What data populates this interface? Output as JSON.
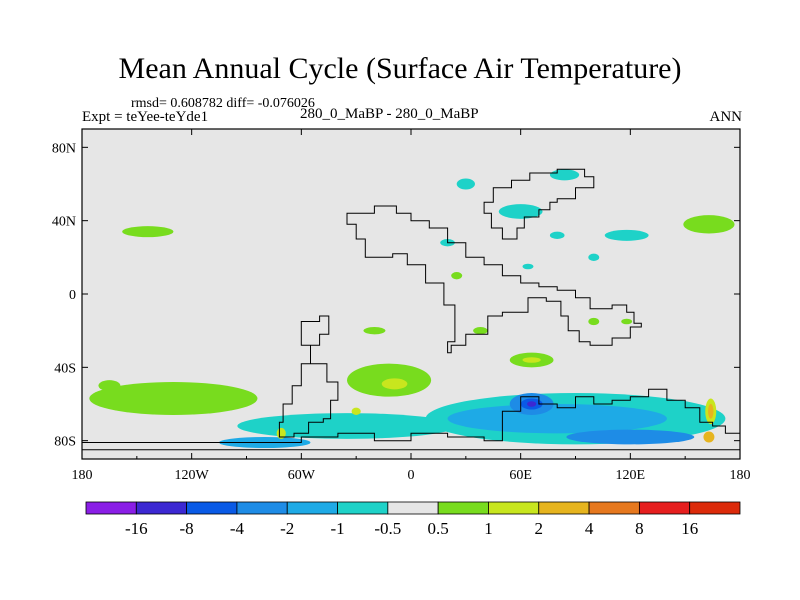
{
  "chart_data": {
    "type": "heatmap",
    "title": "Mean Annual Cycle (Surface Air Temperature)",
    "stats_text": "rmsd= 0.608782 diff= -0.076026",
    "experiment_text": "Expt = teYee-teYde1",
    "case_text": "280_0_MaBP - 280_0_MaBP",
    "season": "ANN",
    "x_axis": {
      "range": [
        -180,
        180
      ],
      "tick_labels": [
        "180",
        "120W",
        "60W",
        "0",
        "60E",
        "120E",
        "180"
      ]
    },
    "y_axis": {
      "range": [
        -90,
        90
      ],
      "tick_labels": [
        "80N",
        "40N",
        "0",
        "40S",
        "80S"
      ]
    },
    "colorbar": {
      "labels": [
        "-16",
        "-8",
        "-4",
        "-2",
        "-1",
        "-0.5",
        "0.5",
        "1",
        "2",
        "4",
        "8",
        "16"
      ],
      "colors": [
        "#8a1ee6",
        "#3c28d2",
        "#0a5ae6",
        "#1e8ce6",
        "#1eaae6",
        "#1ed2c8",
        "#e6e6e6",
        "#78dc1e",
        "#c8e61e",
        "#e6b41e",
        "#e6781e",
        "#e61e1e",
        "#dc2a0a"
      ]
    },
    "background_value_color": "#e6e6e6",
    "regions": [
      {
        "name": "north-pacific-patch",
        "level": "0.5 to 1",
        "color": "#78dc1e",
        "lon": -144,
        "lat": 34,
        "rlon": 14,
        "rlat": 3
      },
      {
        "name": "south-pacific-patch",
        "level": "0.5 to 1",
        "color": "#78dc1e",
        "lon": -130,
        "lat": -57,
        "rlon": 46,
        "rlat": 9
      },
      {
        "name": "west-pacific-coast-patch",
        "level": "0.5 to 1",
        "color": "#78dc1e",
        "lon": -165,
        "lat": -50,
        "rlon": 6,
        "rlat": 3
      },
      {
        "name": "north-pacific-east-patch",
        "level": "0.5 to 1",
        "color": "#78dc1e",
        "lon": 163,
        "lat": 38,
        "rlon": 14,
        "rlat": 5
      },
      {
        "name": "south-atlantic-patch",
        "level": "0.5 to 1",
        "color": "#78dc1e",
        "lon": -12,
        "lat": -47,
        "rlon": 23,
        "rlat": 9
      },
      {
        "name": "south-atlantic-core",
        "level": "1 to 2",
        "color": "#c8e61e",
        "lon": -9,
        "lat": -49,
        "rlon": 7,
        "rlat": 3
      },
      {
        "name": "indian-patch",
        "level": "0.5 to 1",
        "color": "#78dc1e",
        "lon": 66,
        "lat": -36,
        "rlon": 12,
        "rlat": 4
      },
      {
        "name": "indian-core",
        "level": "1 to 2",
        "color": "#c8e61e",
        "lon": 66,
        "lat": -36,
        "rlon": 5,
        "rlat": 1.5
      },
      {
        "name": "south-ocean-band",
        "level": "-1 to -0.5",
        "color": "#1ed2c8",
        "lon": 90,
        "lat": -68,
        "rlon": 82,
        "rlat": 14
      },
      {
        "name": "south-ocean-west",
        "level": "-1 to -0.5",
        "color": "#1ed2c8",
        "lon": -35,
        "lat": -72,
        "rlon": 60,
        "rlat": 7
      },
      {
        "name": "south-ocean-band-mid",
        "level": "-2 to -1",
        "color": "#1eaae6",
        "lon": 80,
        "lat": -68,
        "rlon": 60,
        "rlat": 8
      },
      {
        "name": "south-ocean-low",
        "level": "-4 to -2",
        "color": "#1e8ce6",
        "lon": 66,
        "lat": -60,
        "rlon": 12,
        "rlat": 6
      },
      {
        "name": "south-ocean-lower",
        "level": "-8 to -4",
        "color": "#0a5ae6",
        "lon": 66,
        "lat": -60,
        "rlon": 6,
        "rlat": 3
      },
      {
        "name": "south-ocean-minimum",
        "level": "-16 to -8",
        "color": "#3c28d2",
        "lon": 66,
        "lat": -60,
        "rlon": 2.5,
        "rlat": 1.5
      },
      {
        "name": "antarctic-coast-band",
        "level": "-2 to -1",
        "color": "#1eaae6",
        "lon": -80,
        "lat": -81,
        "rlon": 25,
        "rlat": 3
      },
      {
        "name": "antarctic-coast-deep",
        "level": "-4 to -2",
        "color": "#1e8ce6",
        "lon": 120,
        "lat": -78,
        "rlon": 35,
        "rlat": 4
      },
      {
        "name": "east-australia-warm",
        "level": "1 to 2",
        "color": "#c8e61e",
        "lon": 164,
        "lat": -64,
        "rlon": 3,
        "rlat": 7
      },
      {
        "name": "east-australia-hot",
        "level": "2 to 4",
        "color": "#e6b41e",
        "lon": 164,
        "lat": -64,
        "rlon": 1.5,
        "rlat": 4
      },
      {
        "name": "east-australia-warm-2",
        "level": "2 to 4",
        "color": "#e6b41e",
        "lon": 163,
        "lat": -78,
        "rlon": 3,
        "rlat": 3
      },
      {
        "name": "drake-warm",
        "level": "1 to 2",
        "color": "#c8e61e",
        "lon": -71,
        "lat": -76,
        "rlon": 2.5,
        "rlat": 3
      },
      {
        "name": "scotia-warm",
        "level": "1 to 2",
        "color": "#c8e61e",
        "lon": -30,
        "lat": -64,
        "rlon": 2.5,
        "rlat": 2
      },
      {
        "name": "north-patch-1",
        "level": "-1 to -0.5",
        "color": "#1ed2c8",
        "lon": 30,
        "lat": 60,
        "rlon": 5,
        "rlat": 3
      },
      {
        "name": "north-patch-2",
        "level": "-1 to -0.5",
        "color": "#1ed2c8",
        "lon": 60,
        "lat": 45,
        "rlon": 12,
        "rlat": 4
      },
      {
        "name": "north-patch-3",
        "level": "-1 to -0.5",
        "color": "#1ed2c8",
        "lon": 84,
        "lat": 65,
        "rlon": 8,
        "rlat": 3
      },
      {
        "name": "north-patch-4",
        "level": "-1 to -0.5",
        "color": "#1ed2c8",
        "lon": 118,
        "lat": 32,
        "rlon": 12,
        "rlat": 3
      },
      {
        "name": "north-patch-5",
        "level": "-1 to -0.5",
        "color": "#1ed2c8",
        "lon": 80,
        "lat": 32,
        "rlon": 4,
        "rlat": 2
      },
      {
        "name": "north-patch-6",
        "level": "-1 to -0.5",
        "color": "#1ed2c8",
        "lon": 20,
        "lat": 28,
        "rlon": 4,
        "rlat": 2
      },
      {
        "name": "north-patch-7",
        "level": "-1 to -0.5",
        "color": "#1ed2c8",
        "lon": 100,
        "lat": 20,
        "rlon": 3,
        "rlat": 2
      },
      {
        "name": "north-patch-8",
        "level": "-1 to -0.5",
        "color": "#1ed2c8",
        "lon": 64,
        "lat": 15,
        "rlon": 3,
        "rlat": 1.5
      },
      {
        "name": "equatorial-patch-1",
        "level": "0.5 to 1",
        "color": "#78dc1e",
        "lon": 100,
        "lat": -15,
        "rlon": 3,
        "rlat": 2
      },
      {
        "name": "equatorial-patch-2",
        "level": "0.5 to 1",
        "color": "#78dc1e",
        "lon": 118,
        "lat": -15,
        "rlon": 3,
        "rlat": 1.5
      },
      {
        "name": "equatorial-patch-3",
        "level": "0.5 to 1",
        "color": "#78dc1e",
        "lon": 38,
        "lat": -20,
        "rlon": 4,
        "rlat": 2
      },
      {
        "name": "equatorial-patch-4",
        "level": "0.5 to 1",
        "color": "#78dc1e",
        "lon": -20,
        "lat": -20,
        "rlon": 6,
        "rlat": 2
      },
      {
        "name": "equatorial-patch-5",
        "level": "0.5 to 1",
        "color": "#78dc1e",
        "lon": 25,
        "lat": 10,
        "rlon": 3,
        "rlat": 2
      }
    ],
    "coastlines": [
      {
        "name": "north-continent",
        "points": [
          [
            -20,
            20
          ],
          [
            -25,
            30
          ],
          [
            -30,
            38
          ],
          [
            -35,
            44
          ],
          [
            -28,
            44
          ],
          [
            -20,
            48
          ],
          [
            -10,
            48
          ],
          [
            -8,
            44
          ],
          [
            0,
            40
          ],
          [
            10,
            36
          ],
          [
            20,
            28
          ],
          [
            30,
            20
          ],
          [
            40,
            16
          ],
          [
            50,
            10
          ],
          [
            60,
            6
          ],
          [
            70,
            4
          ],
          [
            80,
            2
          ],
          [
            90,
            -2
          ],
          [
            98,
            -8
          ],
          [
            110,
            -6
          ],
          [
            118,
            -10
          ],
          [
            122,
            -16
          ],
          [
            126,
            -18
          ],
          [
            120,
            -24
          ],
          [
            110,
            -28
          ],
          [
            98,
            -26
          ],
          [
            92,
            -20
          ],
          [
            86,
            -12
          ],
          [
            82,
            -4
          ],
          [
            74,
            -2
          ],
          [
            64,
            -10
          ],
          [
            50,
            -12
          ],
          [
            42,
            -22
          ],
          [
            30,
            -28
          ],
          [
            22,
            -32
          ],
          [
            20,
            -26
          ],
          [
            24,
            -18
          ],
          [
            24,
            -6
          ],
          [
            18,
            6
          ],
          [
            8,
            16
          ],
          [
            -2,
            22
          ],
          [
            -10,
            20
          ],
          [
            -20,
            20
          ]
        ]
      },
      {
        "name": "arctic-island",
        "points": [
          [
            40,
            50
          ],
          [
            45,
            58
          ],
          [
            55,
            62
          ],
          [
            65,
            66
          ],
          [
            80,
            68
          ],
          [
            95,
            64
          ],
          [
            100,
            58
          ],
          [
            90,
            52
          ],
          [
            80,
            50
          ],
          [
            76,
            46
          ],
          [
            70,
            42
          ],
          [
            62,
            36
          ],
          [
            58,
            30
          ],
          [
            50,
            36
          ],
          [
            44,
            44
          ],
          [
            40,
            50
          ]
        ]
      },
      {
        "name": "south-continent",
        "points": [
          [
            -60,
            -15
          ],
          [
            -50,
            -12
          ],
          [
            -45,
            -22
          ],
          [
            -50,
            -28
          ],
          [
            -55,
            -38
          ],
          [
            -60,
            -50
          ],
          [
            -65,
            -60
          ],
          [
            -70,
            -70
          ],
          [
            -72,
            -78
          ],
          [
            -64,
            -76
          ],
          [
            -56,
            -70
          ],
          [
            -48,
            -68
          ],
          [
            -44,
            -58
          ],
          [
            -40,
            -48
          ],
          [
            -46,
            -38
          ],
          [
            -55,
            -28
          ],
          [
            -60,
            -15
          ]
        ]
      },
      {
        "name": "antarctica",
        "points": [
          [
            -180,
            -81
          ],
          [
            -80,
            -81
          ],
          [
            -60,
            -78
          ],
          [
            -40,
            -76
          ],
          [
            -20,
            -80
          ],
          [
            0,
            -76
          ],
          [
            20,
            -78
          ],
          [
            40,
            -80
          ],
          [
            50,
            -64
          ],
          [
            60,
            -56
          ],
          [
            70,
            -60
          ],
          [
            80,
            -62
          ],
          [
            90,
            -56
          ],
          [
            100,
            -60
          ],
          [
            110,
            -58
          ],
          [
            120,
            -56
          ],
          [
            130,
            -52
          ],
          [
            140,
            -58
          ],
          [
            150,
            -62
          ],
          [
            158,
            -70
          ],
          [
            165,
            -72
          ],
          [
            172,
            -76
          ],
          [
            180,
            -78
          ],
          [
            180,
            -85
          ],
          [
            -180,
            -85
          ]
        ]
      }
    ]
  }
}
